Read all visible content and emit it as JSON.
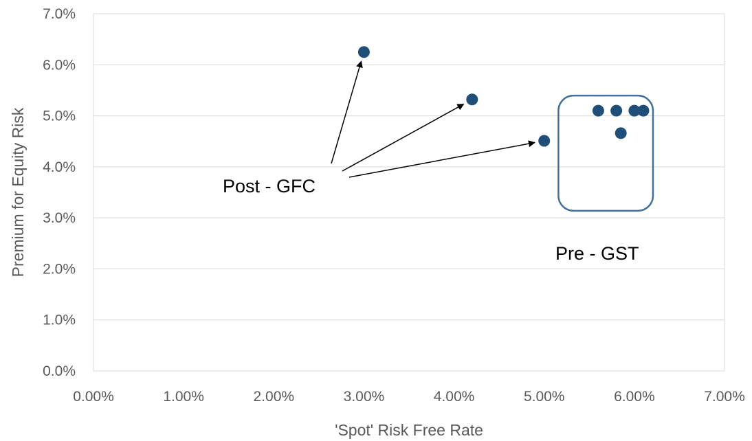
{
  "chart_data": {
    "type": "scatter",
    "title": "",
    "xlabel": "'Spot' Risk Free Rate",
    "ylabel": "Premium for Equity Risk",
    "xlim": [
      0,
      0.07
    ],
    "ylim": [
      0,
      0.07
    ],
    "x_ticks": [
      "0.00%",
      "1.00%",
      "2.00%",
      "3.00%",
      "4.00%",
      "5.00%",
      "6.00%",
      "7.00%"
    ],
    "y_ticks": [
      "0.0%",
      "1.0%",
      "2.0%",
      "3.0%",
      "4.0%",
      "5.0%",
      "6.0%",
      "7.0%"
    ],
    "grid": "horizontal",
    "legend": "none",
    "marker_color": "#1F4E79",
    "series": [
      {
        "points": [
          {
            "x": 0.03,
            "y": 0.0625
          },
          {
            "x": 0.042,
            "y": 0.0532
          },
          {
            "x": 0.05,
            "y": 0.0451
          },
          {
            "x": 0.056,
            "y": 0.051
          },
          {
            "x": 0.058,
            "y": 0.051
          },
          {
            "x": 0.06,
            "y": 0.051
          },
          {
            "x": 0.061,
            "y": 0.051
          },
          {
            "x": 0.0585,
            "y": 0.0466
          }
        ]
      }
    ],
    "annotations": [
      {
        "text": "Post - GFC",
        "arrows_to_points": [
          0,
          1,
          2
        ]
      },
      {
        "text": "Pre - GST",
        "boxed_points": [
          3,
          4,
          5,
          6,
          7
        ]
      }
    ]
  }
}
